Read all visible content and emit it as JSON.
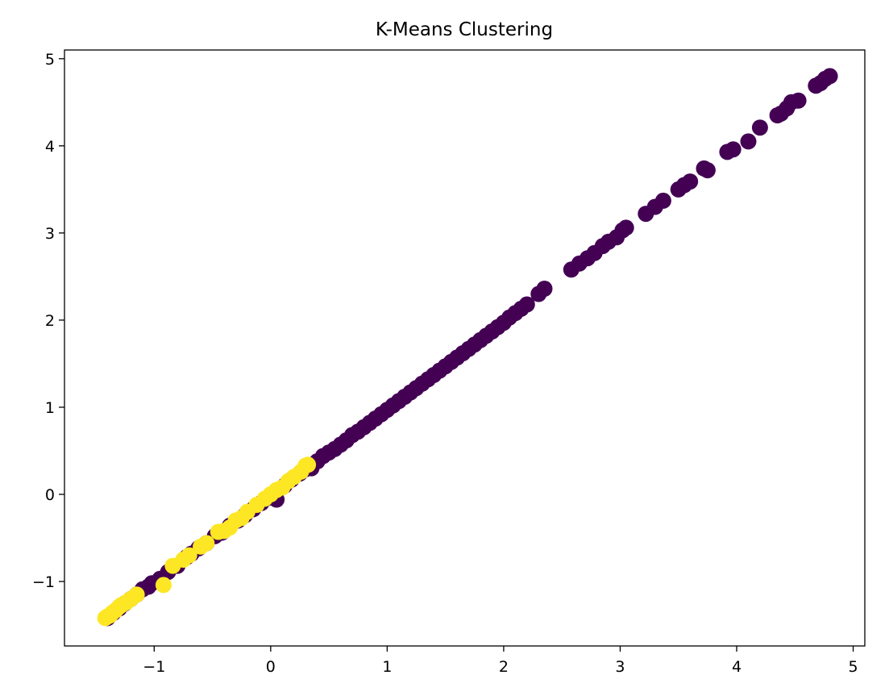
{
  "chart_data": {
    "type": "scatter",
    "title": "K-Means Clustering",
    "xlabel": "",
    "ylabel": "",
    "xlim": [
      -1.77,
      5.1
    ],
    "ylim": [
      -1.74,
      5.1
    ],
    "x_ticks": [
      -1,
      0,
      1,
      2,
      3,
      4,
      5
    ],
    "y_ticks": [
      -1,
      0,
      1,
      2,
      3,
      4,
      5
    ],
    "x_tick_labels": [
      "−1",
      "0",
      "1",
      "2",
      "3",
      "4",
      "5"
    ],
    "y_tick_labels": [
      "−1",
      "0",
      "1",
      "2",
      "3",
      "4",
      "5"
    ],
    "grid": false,
    "legend": "none",
    "colors": {
      "cluster_0": "#440154",
      "cluster_1": "#fde725"
    },
    "series": [
      {
        "color": "#440154",
        "points": [
          [
            -1.4,
            -1.42
          ],
          [
            -1.35,
            -1.36
          ],
          [
            -1.3,
            -1.31
          ],
          [
            -1.25,
            -1.25
          ],
          [
            -1.2,
            -1.2
          ],
          [
            -1.15,
            -1.15
          ],
          [
            -1.1,
            -1.09
          ],
          [
            -1.05,
            -1.06
          ],
          [
            -1.02,
            -1.02
          ],
          [
            -0.95,
            -0.97
          ],
          [
            -0.88,
            -0.89
          ],
          [
            -0.8,
            -0.82
          ],
          [
            -0.72,
            -0.72
          ],
          [
            -0.68,
            -0.68
          ],
          [
            -0.62,
            -0.62
          ],
          [
            -0.55,
            -0.56
          ],
          [
            -0.48,
            -0.48
          ],
          [
            -0.42,
            -0.44
          ],
          [
            -0.35,
            -0.36
          ],
          [
            -0.28,
            -0.3
          ],
          [
            -0.22,
            -0.24
          ],
          [
            -0.15,
            -0.17
          ],
          [
            -0.08,
            -0.1
          ],
          [
            -0.02,
            -0.04
          ],
          [
            0.02,
            0.0
          ],
          [
            0.05,
            -0.06
          ],
          [
            0.12,
            0.1
          ],
          [
            0.18,
            0.17
          ],
          [
            0.25,
            0.24
          ],
          [
            0.3,
            0.29
          ],
          [
            0.35,
            0.3
          ],
          [
            0.4,
            0.38
          ],
          [
            0.45,
            0.44
          ],
          [
            0.5,
            0.48
          ],
          [
            0.55,
            0.52
          ],
          [
            0.6,
            0.57
          ],
          [
            0.65,
            0.62
          ],
          [
            0.7,
            0.68
          ],
          [
            0.75,
            0.72
          ],
          [
            0.8,
            0.77
          ],
          [
            0.85,
            0.82
          ],
          [
            0.9,
            0.87
          ],
          [
            0.95,
            0.92
          ],
          [
            1.0,
            0.97
          ],
          [
            1.05,
            1.02
          ],
          [
            1.1,
            1.07
          ],
          [
            1.15,
            1.12
          ],
          [
            1.2,
            1.17
          ],
          [
            1.25,
            1.22
          ],
          [
            1.3,
            1.27
          ],
          [
            1.35,
            1.32
          ],
          [
            1.4,
            1.37
          ],
          [
            1.45,
            1.42
          ],
          [
            1.5,
            1.47
          ],
          [
            1.55,
            1.52
          ],
          [
            1.6,
            1.57
          ],
          [
            1.65,
            1.62
          ],
          [
            1.7,
            1.67
          ],
          [
            1.75,
            1.72
          ],
          [
            1.8,
            1.77
          ],
          [
            1.85,
            1.82
          ],
          [
            1.9,
            1.87
          ],
          [
            1.95,
            1.92
          ],
          [
            2.0,
            1.97
          ],
          [
            2.05,
            2.03
          ],
          [
            2.1,
            2.08
          ],
          [
            2.15,
            2.13
          ],
          [
            2.2,
            2.18
          ],
          [
            2.3,
            2.3
          ],
          [
            2.35,
            2.36
          ],
          [
            2.58,
            2.58
          ],
          [
            2.65,
            2.65
          ],
          [
            2.72,
            2.71
          ],
          [
            2.78,
            2.77
          ],
          [
            2.85,
            2.85
          ],
          [
            2.9,
            2.9
          ],
          [
            2.97,
            2.95
          ],
          [
            3.02,
            3.03
          ],
          [
            3.05,
            3.06
          ],
          [
            3.22,
            3.22
          ],
          [
            3.3,
            3.3
          ],
          [
            3.37,
            3.37
          ],
          [
            3.5,
            3.5
          ],
          [
            3.55,
            3.55
          ],
          [
            3.6,
            3.59
          ],
          [
            3.72,
            3.74
          ],
          [
            3.75,
            3.72
          ],
          [
            3.92,
            3.93
          ],
          [
            3.97,
            3.96
          ],
          [
            4.1,
            4.05
          ],
          [
            4.2,
            4.21
          ],
          [
            4.35,
            4.35
          ],
          [
            4.38,
            4.37
          ],
          [
            4.43,
            4.43
          ],
          [
            4.47,
            4.5
          ],
          [
            4.53,
            4.52
          ],
          [
            4.68,
            4.69
          ],
          [
            4.72,
            4.72
          ],
          [
            4.76,
            4.77
          ],
          [
            4.8,
            4.8
          ]
        ]
      },
      {
        "color": "#fde725",
        "points": [
          [
            -1.42,
            -1.42
          ],
          [
            -1.4,
            -1.4
          ],
          [
            -1.38,
            -1.39
          ],
          [
            -1.36,
            -1.36
          ],
          [
            -1.33,
            -1.33
          ],
          [
            -1.3,
            -1.29
          ],
          [
            -1.28,
            -1.27
          ],
          [
            -1.24,
            -1.24
          ],
          [
            -1.2,
            -1.2
          ],
          [
            -1.15,
            -1.15
          ],
          [
            -0.92,
            -1.04
          ],
          [
            -0.84,
            -0.82
          ],
          [
            -0.75,
            -0.75
          ],
          [
            -0.7,
            -0.7
          ],
          [
            -0.6,
            -0.6
          ],
          [
            -0.55,
            -0.56
          ],
          [
            -0.45,
            -0.43
          ],
          [
            -0.4,
            -0.42
          ],
          [
            -0.35,
            -0.38
          ],
          [
            -0.3,
            -0.3
          ],
          [
            -0.25,
            -0.27
          ],
          [
            -0.2,
            -0.2
          ],
          [
            -0.12,
            -0.12
          ],
          [
            -0.05,
            -0.05
          ],
          [
            0.0,
            0.0
          ],
          [
            0.05,
            0.05
          ],
          [
            0.1,
            0.08
          ],
          [
            0.15,
            0.15
          ],
          [
            0.2,
            0.2
          ],
          [
            0.26,
            0.26
          ],
          [
            0.3,
            0.33
          ],
          [
            0.32,
            0.34
          ]
        ]
      }
    ]
  }
}
